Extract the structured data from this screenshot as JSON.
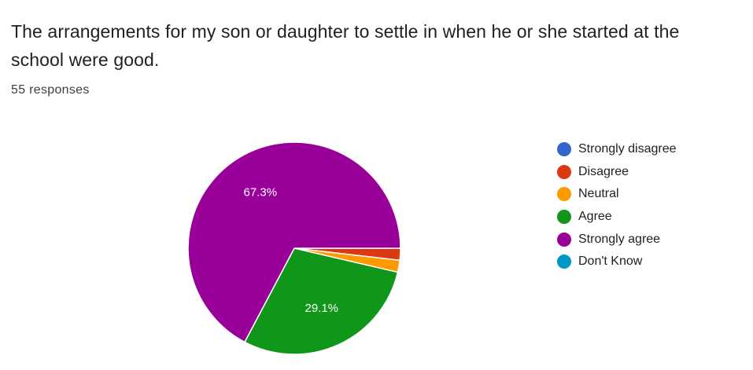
{
  "question": {
    "title": "The arrangements for my son or daughter to settle in when he or she started at the school were good.",
    "responses": "55 responses"
  },
  "chart_data": {
    "type": "pie",
    "categories": [
      "Strongly disagree",
      "Disagree",
      "Neutral",
      "Agree",
      "Strongly agree",
      "Don't Know"
    ],
    "values": [
      0,
      1,
      1,
      16,
      37,
      0
    ],
    "percent_labels": [
      "",
      "",
      "",
      "29.1%",
      "67.3%",
      ""
    ],
    "colors": [
      "#3366cc",
      "#dc3912",
      "#ff9900",
      "#109618",
      "#990099",
      "#0099c6"
    ],
    "legend_position": "right"
  }
}
